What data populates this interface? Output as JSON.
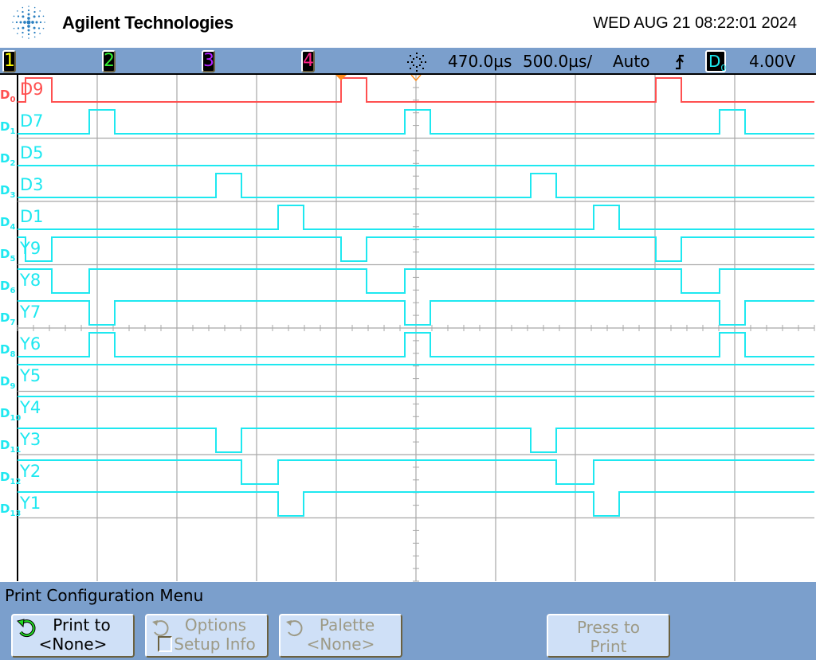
{
  "header": {
    "brand": "Agilent Technologies",
    "datetime": "WED AUG 21 08:22:01 2024"
  },
  "status": {
    "channels": [
      {
        "label": "1",
        "color": "#ffff00"
      },
      {
        "label": "2",
        "color": "#33ee33"
      },
      {
        "label": "3",
        "color": "#b020ff"
      },
      {
        "label": "4",
        "color": "#ff2288"
      }
    ],
    "delay": "470.0µs",
    "timebase": "500.0µs/",
    "trigger_mode": "Auto",
    "trigger_slope_icon": "rising-edge-icon",
    "trigger_source": "D",
    "trigger_source_sub": "0",
    "trigger_level": "4.00V",
    "run_icon": "acquisition-icon"
  },
  "colors": {
    "d0": "#ff5050",
    "digital": "#1ee8f0",
    "grid": "#a8a8a8",
    "trigger_marker": "#ff8c1a",
    "bar": "#7b9fcc"
  },
  "timebase": {
    "us_per_div": 500,
    "delay_us": 470,
    "divisions": 10
  },
  "channels": [
    {
      "ch": "0",
      "name": "D9",
      "idle": "low",
      "pulses_us": [
        [
          -1980,
          -1815
        ],
        [
          0,
          160
        ],
        [
          1975,
          2135
        ]
      ]
    },
    {
      "ch": "1",
      "name": "D7",
      "idle": "low",
      "pulses_us": [
        [
          -1580,
          -1420
        ],
        [
          400,
          560
        ],
        [
          2375,
          2535
        ]
      ]
    },
    {
      "ch": "2",
      "name": "D5",
      "idle": "low",
      "pulses_us": []
    },
    {
      "ch": "3",
      "name": "D3",
      "idle": "low",
      "pulses_us": [
        [
          -785,
          -625
        ],
        [
          1190,
          1350
        ]
      ]
    },
    {
      "ch": "4",
      "name": "D1",
      "idle": "low",
      "pulses_us": [
        [
          -395,
          -235
        ],
        [
          1585,
          1745
        ]
      ]
    },
    {
      "ch": "5",
      "name": "Y9",
      "idle": "high",
      "pulses_us": [
        [
          -1980,
          -1815
        ],
        [
          0,
          160
        ],
        [
          1975,
          2135
        ]
      ]
    },
    {
      "ch": "6",
      "name": "Y8",
      "idle": "high",
      "pulses_us": [
        [
          -1815,
          -1580
        ],
        [
          160,
          400
        ],
        [
          2135,
          2375
        ]
      ]
    },
    {
      "ch": "7",
      "name": "Y7",
      "idle": "high",
      "pulses_us": [
        [
          -1580,
          -1420
        ],
        [
          400,
          560
        ],
        [
          2375,
          2535
        ]
      ]
    },
    {
      "ch": "8",
      "name": "Y6",
      "idle": "low",
      "pulses_us": [
        [
          -1580,
          -1420
        ],
        [
          400,
          560
        ],
        [
          2375,
          2535
        ]
      ]
    },
    {
      "ch": "9",
      "name": "Y5",
      "idle": "high",
      "pulses_us": []
    },
    {
      "ch": "10",
      "name": "Y4",
      "idle": "high",
      "pulses_us": []
    },
    {
      "ch": "11",
      "name": "Y3",
      "idle": "high",
      "pulses_us": [
        [
          -785,
          -625
        ],
        [
          1190,
          1350
        ]
      ]
    },
    {
      "ch": "12",
      "name": "Y2",
      "idle": "high",
      "pulses_us": [
        [
          -625,
          -395
        ],
        [
          1350,
          1585
        ]
      ]
    },
    {
      "ch": "13",
      "name": "Y1",
      "idle": "high",
      "pulses_us": [
        [
          -395,
          -235
        ],
        [
          1585,
          1745
        ]
      ]
    }
  ],
  "menu": {
    "title": "Print Configuration Menu",
    "softkeys": [
      {
        "line1": "Print to",
        "line2": "<None>",
        "enabled": true
      },
      {
        "line1": "Options",
        "line2": "Setup Info",
        "enabled": false,
        "checked": false
      },
      {
        "line1": "Palette",
        "line2": "<None>",
        "enabled": false
      },
      {
        "line1": "Press to",
        "line2": "Print",
        "enabled": false
      }
    ]
  }
}
